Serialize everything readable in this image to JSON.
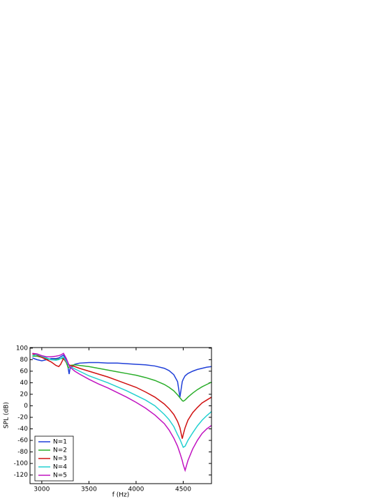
{
  "chart_data": {
    "type": "line",
    "x_label": "f (Hz)",
    "y_label": "SPL (dB)",
    "x": [
      2900,
      2950,
      3000,
      3050,
      3100,
      3150,
      3180,
      3200,
      3230,
      3260,
      3280,
      3290,
      3300,
      3350,
      3400,
      3500,
      3600,
      3700,
      3800,
      3900,
      4000,
      4100,
      4200,
      4300,
      4350,
      4400,
      4440,
      4465,
      4490,
      4500,
      4520,
      4550,
      4600,
      4650,
      4700,
      4750,
      4800
    ],
    "series": [
      {
        "name": "N=1",
        "color": "#1f3fd8",
        "values": [
          83,
          80,
          78,
          80,
          82,
          82,
          83,
          85,
          88,
          80,
          65,
          55,
          65,
          72,
          74,
          75,
          75,
          74,
          74,
          73,
          72,
          71,
          69,
          65,
          61,
          54,
          42,
          15,
          42,
          46,
          52,
          56,
          60,
          63,
          65,
          67,
          68
        ]
      },
      {
        "name": "N=2",
        "color": "#2aae2a",
        "values": [
          86,
          86,
          84,
          82,
          80,
          80,
          81,
          82,
          82,
          75,
          66,
          67,
          70,
          71,
          70,
          68,
          65,
          62,
          59,
          56,
          53,
          49,
          44,
          37,
          32,
          26,
          19,
          14,
          9,
          8,
          10,
          15,
          22,
          28,
          33,
          37,
          41
        ]
      },
      {
        "name": "N=3",
        "color": "#d01010",
        "values": [
          90,
          88,
          84,
          80,
          76,
          70,
          68,
          72,
          82,
          76,
          72,
          71,
          70,
          68,
          65,
          60,
          55,
          50,
          44,
          38,
          32,
          24,
          15,
          3,
          -5,
          -15,
          -27,
          -38,
          -57,
          -50,
          -38,
          -25,
          -12,
          -3,
          5,
          10,
          15
        ]
      },
      {
        "name": "N=4",
        "color": "#22d0d0",
        "values": [
          87,
          89,
          86,
          83,
          80,
          79,
          80,
          82,
          85,
          77,
          72,
          70,
          68,
          64,
          60,
          52,
          46,
          40,
          33,
          26,
          18,
          10,
          0,
          -15,
          -24,
          -36,
          -50,
          -58,
          -68,
          -72,
          -70,
          -60,
          -47,
          -35,
          -25,
          -17,
          -10
        ]
      },
      {
        "name": "N=5",
        "color": "#c012c0",
        "values": [
          91,
          90,
          87,
          85,
          85,
          86,
          87,
          88,
          91,
          82,
          74,
          70,
          67,
          60,
          55,
          46,
          38,
          31,
          23,
          15,
          6,
          -4,
          -16,
          -31,
          -42,
          -56,
          -70,
          -82,
          -95,
          -102,
          -112,
          -95,
          -75,
          -60,
          -48,
          -40,
          -34
        ]
      }
    ],
    "xlim": [
      2875,
      4800
    ],
    "ylim": [
      -135,
      101
    ],
    "xticks": [
      3000,
      3500,
      4000,
      4500
    ],
    "yticks": [
      100,
      80,
      60,
      40,
      20,
      0,
      -20,
      -40,
      -60,
      -80,
      -100,
      -120
    ],
    "legend": "lower left"
  }
}
